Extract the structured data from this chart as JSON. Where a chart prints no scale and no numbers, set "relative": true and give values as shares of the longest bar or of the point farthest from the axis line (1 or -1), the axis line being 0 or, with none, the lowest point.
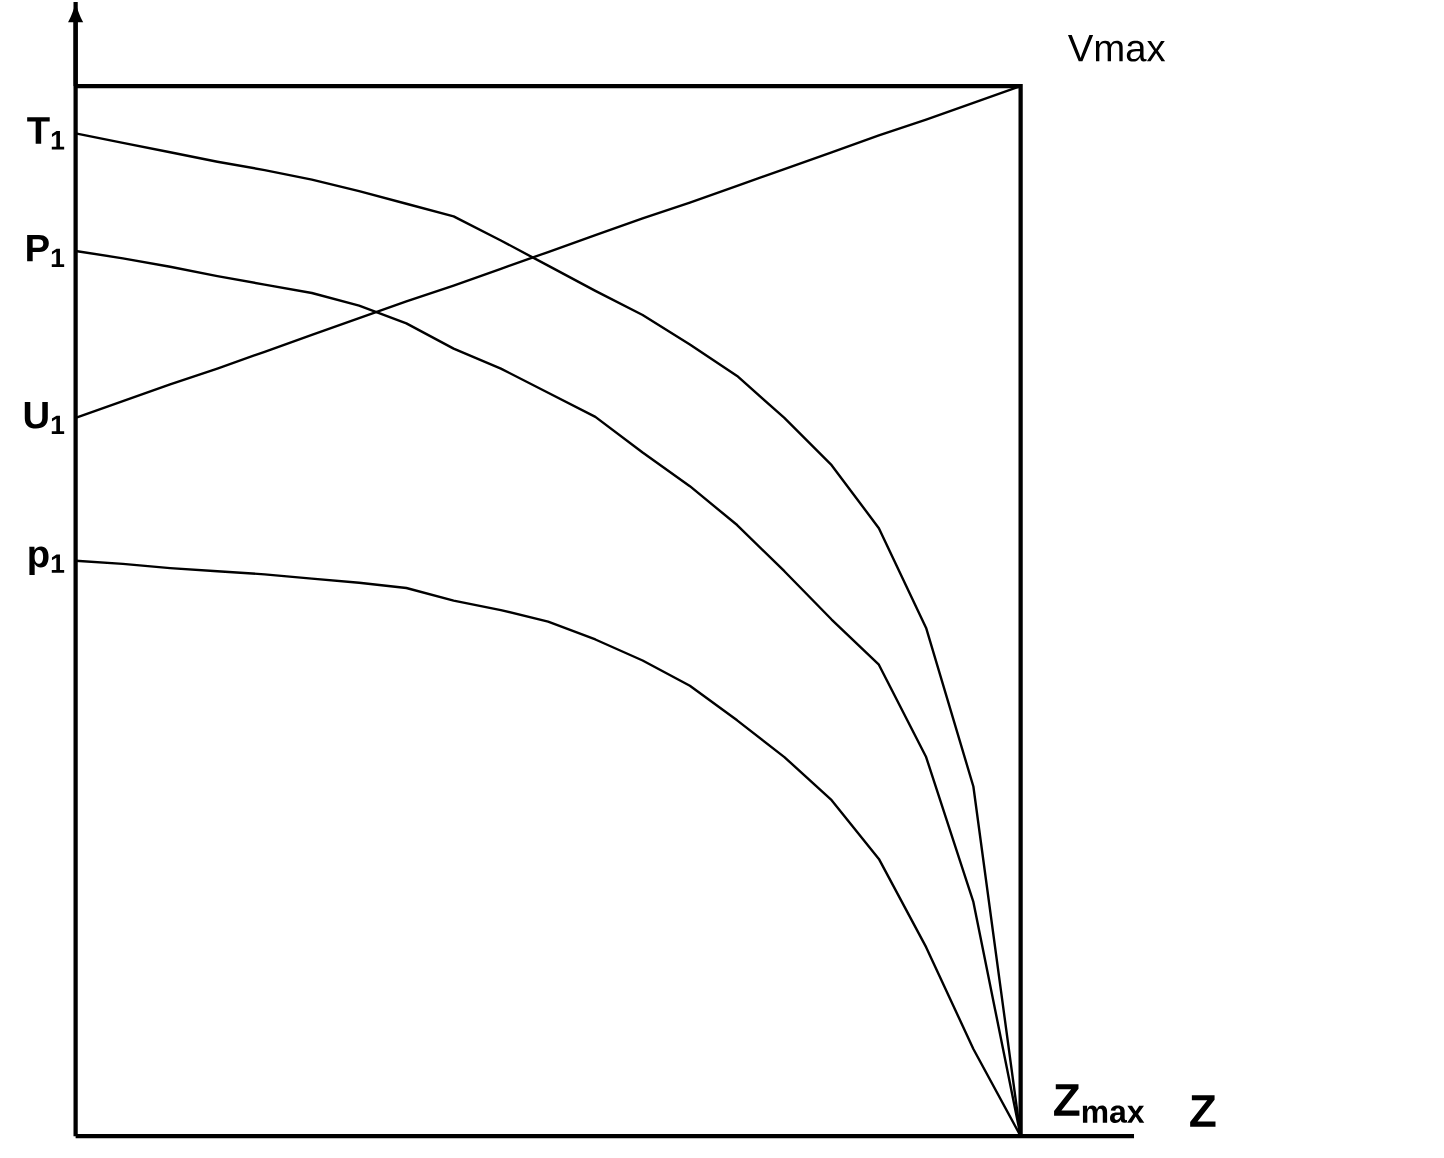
{
  "chart_data": {
    "type": "line",
    "relative": true,
    "xlabel": "Z",
    "annotations": [
      "Vmax",
      "Z$_{max}$"
    ],
    "categories": [
      null,
      null,
      null,
      null,
      null,
      null,
      null,
      null,
      null,
      null,
      null,
      null,
      null,
      null,
      null,
      null,
      null,
      null,
      null,
      null,
      null
    ],
    "series": [
      {
        "name": "T$_{1}$",
        "color": "#000000",
        "values": [
          0.955,
          0.946,
          0.937,
          0.928,
          0.92,
          0.911,
          0.9,
          0.888,
          0.876,
          0.853,
          0.829,
          0.805,
          0.782,
          0.754,
          0.724,
          0.684,
          0.639,
          0.579,
          0.484,
          0.333,
          0
        ]
      },
      {
        "name": "P$_{1}$",
        "color": "#000000",
        "values": [
          0.843,
          0.836,
          0.828,
          0.819,
          0.811,
          0.803,
          0.791,
          0.774,
          0.75,
          0.731,
          0.708,
          0.685,
          0.651,
          0.619,
          0.582,
          0.538,
          0.492,
          0.449,
          0.361,
          0.223,
          0
        ]
      },
      {
        "name": "U$_{1}$",
        "color": "#000000",
        "values": [
          0.684,
          0.7,
          0.716,
          0.731,
          0.747,
          0.763,
          0.779,
          0.795,
          0.81,
          0.826,
          0.842,
          0.858,
          0.874,
          0.889,
          0.905,
          0.921,
          0.937,
          0.953,
          0.968,
          0.984,
          1
        ]
      },
      {
        "name": "p$_{1}$",
        "color": "#000000",
        "values": [
          0.548,
          0.545,
          0.541,
          0.538,
          0.535,
          0.531,
          0.527,
          0.522,
          0.51,
          0.501,
          0.49,
          0.473,
          0.453,
          0.429,
          0.396,
          0.361,
          0.32,
          0.264,
          0.18,
          0.083,
          0
        ]
      }
    ]
  }
}
